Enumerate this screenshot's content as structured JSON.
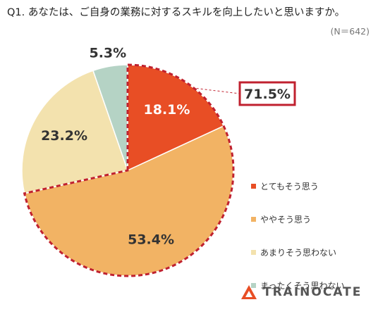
{
  "question": "Q1. あなたは、ご自身の業務に対するスキルを向上したいと思いますか。",
  "sample_size": "(N＝642)",
  "callout": {
    "value": 71.5,
    "label": "71.5%",
    "border_color": "#c0212f"
  },
  "chart_data": {
    "type": "pie",
    "start_angle_deg": 0,
    "direction": "clockwise",
    "slices": [
      {
        "label": "とてもそう思う",
        "value": 18.1,
        "value_label": "18.1%",
        "color": "#e84e25",
        "text_color": "#ffffff"
      },
      {
        "label": "ややそう思う",
        "value": 53.4,
        "value_label": "53.4%",
        "color": "#f2b364",
        "text_color": "#333333"
      },
      {
        "label": "あまりそう思わない",
        "value": 23.2,
        "value_label": "23.2%",
        "color": "#f3e2ae",
        "text_color": "#333333"
      },
      {
        "label": "まったくそう思わない",
        "value": 5.3,
        "value_label": "5.3%",
        "color": "#b5d3c5",
        "text_color": "#333333"
      }
    ],
    "highlighted_slices": [
      "とてもそう思う",
      "ややそう思う"
    ],
    "highlight_color": "#c0212f",
    "legend_position": "right"
  },
  "logo": {
    "text": "TRAINOCATE",
    "mark_color": "#e84e25"
  }
}
